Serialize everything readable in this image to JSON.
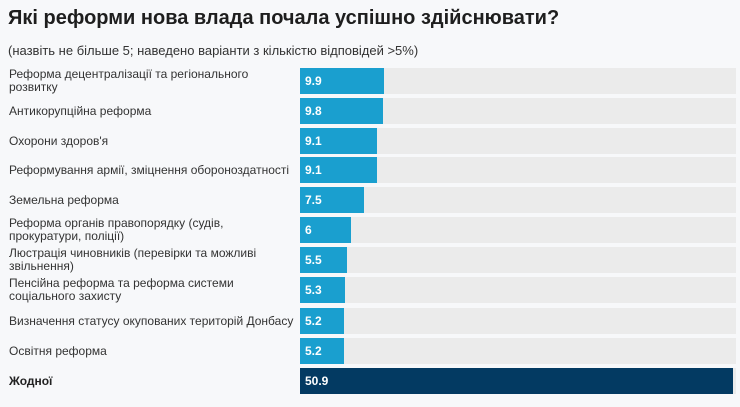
{
  "chart_data": {
    "type": "bar",
    "orientation": "horizontal",
    "title": "Які реформи нова влада почала успішно здійснювати?",
    "subtitle": "(назвіть не більше 5; наведено варіанти з кількістю відповідей >5%)",
    "categories": [
      "Реформа децентралізації та регіонального розвитку",
      "Антикорупційна реформа",
      "Охорони здоров'я",
      "Реформування армії, зміцнення обороноздатності",
      "Земельна реформа",
      "Реформа органів правопорядку (судів, прокуратури, поліції)",
      "Люстрація чиновників (перевірки та можливі звільнення)",
      "Пенсійна реформа та реформа системи соціального захисту",
      "Визначення статусу окупованих територій Донбасу",
      "Освітня реформа",
      "Жодної"
    ],
    "values": [
      9.9,
      9.8,
      9.1,
      9.1,
      7.5,
      6,
      5.5,
      5.3,
      5.2,
      5.2,
      50.9
    ],
    "value_labels": [
      "9.9",
      "9.8",
      "9.1",
      "9.1",
      "7.5",
      "6",
      "5.5",
      "5.3",
      "5.2",
      "5.2",
      "50.9"
    ],
    "xlim": [
      0,
      51.2
    ],
    "grid": false,
    "colors": {
      "bar": "#1a9fcf",
      "highlight": "#033a62",
      "track": "#ebebeb"
    },
    "highlight_index": 10
  }
}
